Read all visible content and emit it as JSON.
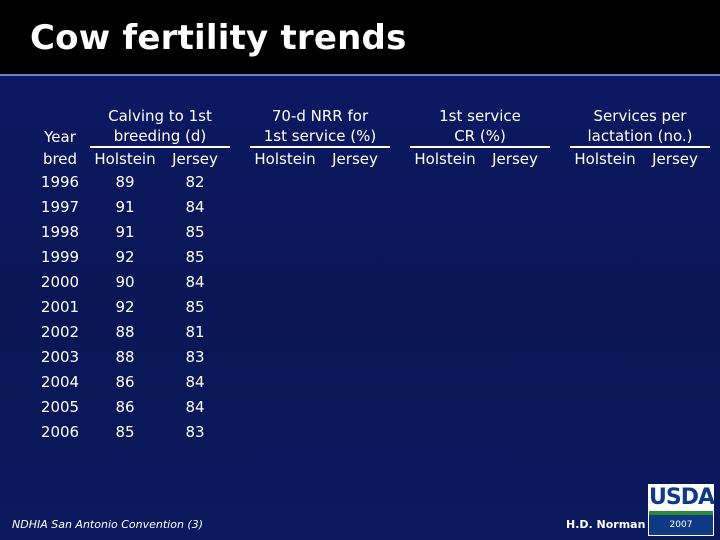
{
  "slide": {
    "title": "Cow fertility trends",
    "footer_left": "NDHIA San Antonio Convention (3)",
    "footer_right": "H.D. Norman",
    "logo_text": "USDA",
    "logo_year": "2007"
  },
  "table": {
    "year_header_line1": "Year",
    "year_header_line2": "bred",
    "groups": [
      {
        "line1": "Calving to 1st",
        "line2": "breeding (d)",
        "holstein": "Holstein",
        "jersey": "Jersey"
      },
      {
        "line1": "70-d NRR for",
        "line2": "1st service (%)",
        "holstein": "Holstein",
        "jersey": "Jersey"
      },
      {
        "line1": "1st service",
        "line2": "CR (%)",
        "holstein": "Holstein",
        "jersey": "Jersey"
      },
      {
        "line1": "Services per",
        "line2": "lactation (no.)",
        "holstein": "Holstein",
        "jersey": "Jersey"
      }
    ],
    "rows": [
      {
        "year": "1996",
        "h": "89",
        "j": "82"
      },
      {
        "year": "1997",
        "h": "91",
        "j": "84"
      },
      {
        "year": "1998",
        "h": "91",
        "j": "85"
      },
      {
        "year": "1999",
        "h": "92",
        "j": "85"
      },
      {
        "year": "2000",
        "h": "90",
        "j": "84"
      },
      {
        "year": "2001",
        "h": "92",
        "j": "85"
      },
      {
        "year": "2002",
        "h": "88",
        "j": "81"
      },
      {
        "year": "2003",
        "h": "88",
        "j": "83"
      },
      {
        "year": "2004",
        "h": "86",
        "j": "84"
      },
      {
        "year": "2005",
        "h": "86",
        "j": "84"
      },
      {
        "year": "2006",
        "h": "85",
        "j": "83"
      }
    ]
  }
}
